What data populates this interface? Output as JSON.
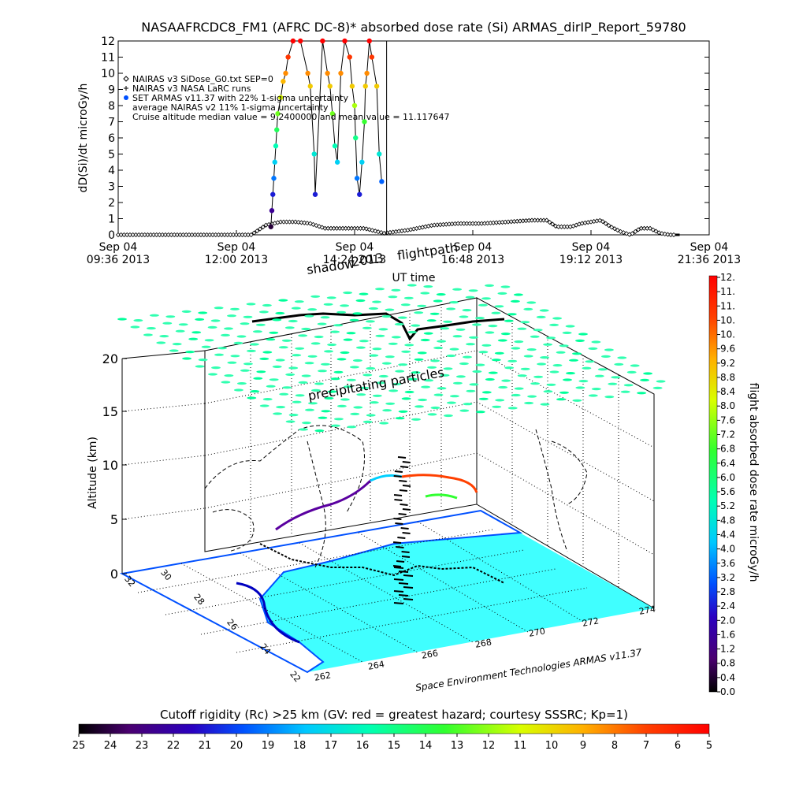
{
  "chart_data": [
    {
      "type": "line",
      "title": "NASAAFRCDC8_FM1 (AFRC DC-8)* absorbed dose rate (Si) ARMAS_dirIP_Report_59780",
      "xlabel": "UT time",
      "ylabel": "dD(Si)/dt microGy/h",
      "ylim": [
        0,
        12
      ],
      "y_ticks": [
        "0",
        "1",
        "2",
        "3",
        "4",
        "5",
        "6",
        "7",
        "8",
        "9",
        "10",
        "11",
        "12"
      ],
      "x_ticks": [
        {
          "line1": "Sep 04",
          "line2": "09:36 2013"
        },
        {
          "line1": "Sep 04",
          "line2": "12:00 2013"
        },
        {
          "line1": "Sep 04",
          "line2": "14:24 2013"
        },
        {
          "line1": "Sep 04",
          "line2": "16:48 2013"
        },
        {
          "line1": "Sep 04",
          "line2": "19:12 2013"
        },
        {
          "line1": "Sep 04",
          "line2": "21:36 2013"
        }
      ],
      "x_range_hours": [
        9.6,
        21.6
      ],
      "legend": [
        {
          "symbol": "diamond",
          "text": "NAIRAS v3 SiDose_G0.txt SEP=0"
        },
        {
          "symbol": "plus",
          "text": "NAIRAS v3 NASA LaRC runs"
        },
        {
          "symbol": "dot",
          "text": "SET ARMAS v11.37 with 22% 1-sigma uncertainty"
        },
        {
          "symbol": "none",
          "text": "average NAIRAS v2 11% 1-sigma uncertainty"
        },
        {
          "symbol": "none",
          "text": "Cruise altitude median value = 9.2400000 and mean value = 11.117647"
        }
      ],
      "legend_position": "top-left",
      "series": [
        {
          "name": "NAIRAS v3 SiDose_G0.txt SEP=0",
          "x": [
            9.6,
            10.5,
            11.5,
            12.3,
            12.6,
            12.9,
            13.2,
            13.5,
            13.8,
            14.2,
            14.6,
            15.0,
            15.5,
            16.0,
            16.5,
            17.0,
            17.5,
            18.0,
            18.3,
            18.5,
            18.8,
            19.0,
            19.2,
            19.4,
            19.6,
            19.8,
            20.0,
            20.2,
            20.4,
            20.6,
            20.8,
            21.0
          ],
          "values": [
            0.0,
            0.0,
            0.0,
            0.0,
            0.6,
            0.8,
            0.8,
            0.7,
            0.4,
            0.4,
            0.4,
            0.1,
            0.3,
            0.6,
            0.7,
            0.7,
            0.8,
            0.9,
            0.9,
            0.5,
            0.5,
            0.7,
            0.8,
            0.9,
            0.5,
            0.2,
            0.0,
            0.4,
            0.4,
            0.1,
            0.0,
            0.0
          ]
        }
      ],
      "armas_points": {
        "x": [
          12.7,
          12.72,
          12.74,
          12.76,
          12.78,
          12.8,
          12.82,
          12.84,
          12.9,
          12.95,
          13.0,
          13.05,
          13.15,
          13.3,
          13.45,
          13.5,
          13.58,
          13.6,
          13.75,
          13.85,
          13.9,
          13.95,
          14.0,
          14.05,
          14.12,
          14.2,
          14.3,
          14.35,
          14.4,
          14.42,
          14.45,
          14.5,
          14.55,
          14.6,
          14.62,
          14.65,
          14.7,
          14.75,
          14.85,
          14.9,
          14.95
        ],
        "values": [
          0.5,
          1.5,
          2.5,
          3.5,
          4.5,
          5.5,
          6.5,
          7.5,
          8.5,
          9.5,
          10.0,
          11.0,
          12.0,
          12.0,
          10.0,
          9.2,
          5.0,
          2.5,
          12.0,
          10.0,
          9.2,
          7.5,
          5.5,
          4.5,
          10.0,
          12.0,
          11.0,
          9.2,
          8.0,
          6.0,
          3.5,
          2.5,
          4.5,
          7.0,
          9.2,
          10.0,
          12.0,
          11.0,
          9.2,
          5.0,
          3.3
        ]
      },
      "spike_time": 15.05
    },
    {
      "type": "scatter",
      "title": "",
      "zlabel": "Altitude (km)",
      "z_ticks": [
        "0",
        "5",
        "10",
        "15",
        "20"
      ],
      "lat_ticks": [
        "22",
        "24",
        "26",
        "28",
        "30",
        "32"
      ],
      "lon_ticks": [
        "262",
        "264",
        "266",
        "268",
        "270",
        "272",
        "274"
      ],
      "labels": {
        "flightpath": "flightpath",
        "shadow": "shadow",
        "shadow_suffix": "2013",
        "particles": "precipitating particles",
        "credit": "Space Environment Technologies ARMAS v11.37"
      }
    },
    {
      "type": "heatmap",
      "role": "vertical colorbar",
      "label": "flight absorbed dose rate microGy/h",
      "ticks": [
        "0.0",
        "0.4",
        "0.8",
        "1.2",
        "1.6",
        "2.0",
        "2.4",
        "2.8",
        "3.2",
        "3.6",
        "4.0",
        "4.4",
        "4.8",
        "5.2",
        "5.6",
        "6.0",
        "6.4",
        "6.8",
        "7.2",
        "7.6",
        "8.0",
        "8.4",
        "8.8",
        "9.2",
        "9.6",
        "10.",
        "10.",
        "11.",
        "11.",
        "12."
      ],
      "range": [
        0,
        12
      ]
    },
    {
      "type": "heatmap",
      "role": "horizontal colorbar",
      "title": "Cutoff rigidity (Rc) >25 km (GV: red = greatest hazard; courtesy SSSRC; Kp=1)",
      "ticks": [
        "25",
        "24",
        "23",
        "22",
        "21",
        "20",
        "19",
        "18",
        "17",
        "16",
        "15",
        "14",
        "13",
        "12",
        "11",
        "10",
        "9",
        "8",
        "7",
        "6",
        "5"
      ],
      "range": [
        25,
        5
      ]
    }
  ]
}
